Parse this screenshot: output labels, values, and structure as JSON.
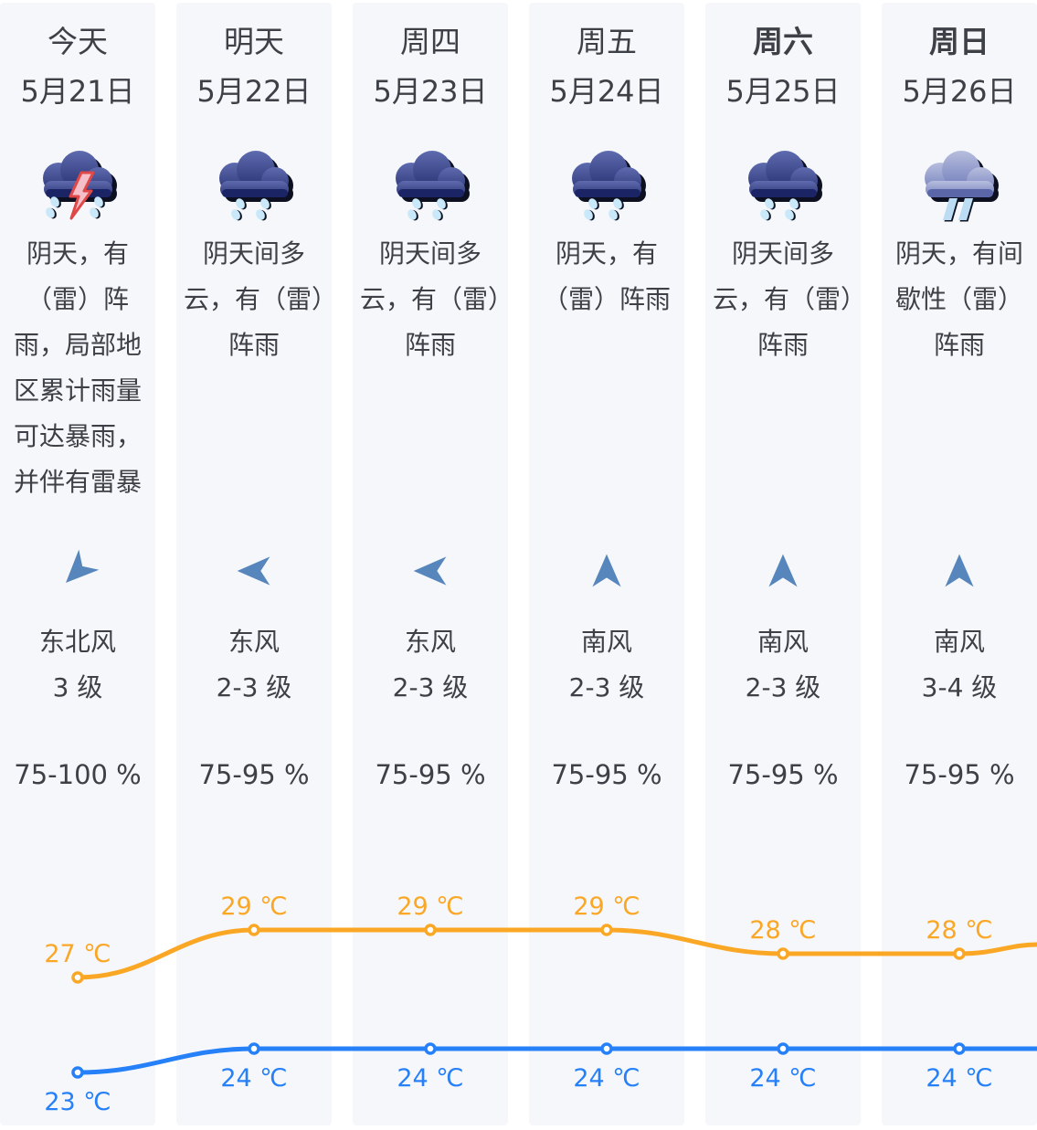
{
  "page": {
    "background": "#ffffff",
    "column_background": "#f6f7fb",
    "text_color": "#3d4046",
    "wind_arrow_color": "#5786bd"
  },
  "columns": [
    {
      "day": "今天",
      "date": "5月21日",
      "bold": false,
      "icon": "cloud-thunder-rain-icon",
      "desc": "阴天，有（雷）阵雨，局部地区累计雨量可达暴雨，并伴有雷暴",
      "wind_arrow": "arrow-southwest",
      "wind_dir": "东北风",
      "wind_level": "3 级",
      "humidity": "75-100 %"
    },
    {
      "day": "明天",
      "date": "5月22日",
      "bold": false,
      "icon": "cloud-rain-icon",
      "desc": "阴天间多云，有（雷）阵雨",
      "wind_arrow": "arrow-west",
      "wind_dir": "东风",
      "wind_level": "2-3 级",
      "humidity": "75-95 %"
    },
    {
      "day": "周四",
      "date": "5月23日",
      "bold": false,
      "icon": "cloud-rain-icon",
      "desc": "阴天间多云，有（雷）阵雨",
      "wind_arrow": "arrow-west",
      "wind_dir": "东风",
      "wind_level": "2-3 级",
      "humidity": "75-95 %"
    },
    {
      "day": "周五",
      "date": "5月24日",
      "bold": false,
      "icon": "cloud-rain-icon",
      "desc": "阴天，有（雷）阵雨",
      "wind_arrow": "arrow-north",
      "wind_dir": "南风",
      "wind_level": "2-3 级",
      "humidity": "75-95 %"
    },
    {
      "day": "周六",
      "date": "5月25日",
      "bold": true,
      "icon": "cloud-rain-icon",
      "desc": "阴天间多云，有（雷）阵雨",
      "wind_arrow": "arrow-north",
      "wind_dir": "南风",
      "wind_level": "2-3 级",
      "humidity": "75-95 %"
    },
    {
      "day": "周日",
      "date": "5月26日",
      "bold": true,
      "icon": "cloud-showers-icon",
      "desc": "阴天，有间歇性（雷）阵雨",
      "wind_arrow": "arrow-north",
      "wind_dir": "南风",
      "wind_level": "3-4 级",
      "humidity": "75-95 %"
    }
  ],
  "chart_data": {
    "type": "line",
    "categories": [
      "今天 5月21日",
      "明天 5月22日",
      "周四 5月23日",
      "周五 5月24日",
      "周六 5月25日",
      "周日 5月26日"
    ],
    "series": [
      {
        "name": "high-temperature",
        "values": [
          27,
          29,
          29,
          29,
          28,
          28
        ],
        "color": "#fba726",
        "labels": [
          "27 ℃",
          "29 ℃",
          "29 ℃",
          "29 ℃",
          "28 ℃",
          "28 ℃"
        ],
        "label_position": "above"
      },
      {
        "name": "low-temperature",
        "values": [
          23,
          24,
          24,
          24,
          24,
          24
        ],
        "color": "#2680f7",
        "labels": [
          "23 ℃",
          "24 ℃",
          "24 ℃",
          "24 ℃",
          "24 ℃",
          "24 ℃"
        ],
        "label_position": "below"
      }
    ],
    "unit": "℃",
    "grid": false,
    "legend": false,
    "ylim": [
      22,
      31
    ]
  }
}
